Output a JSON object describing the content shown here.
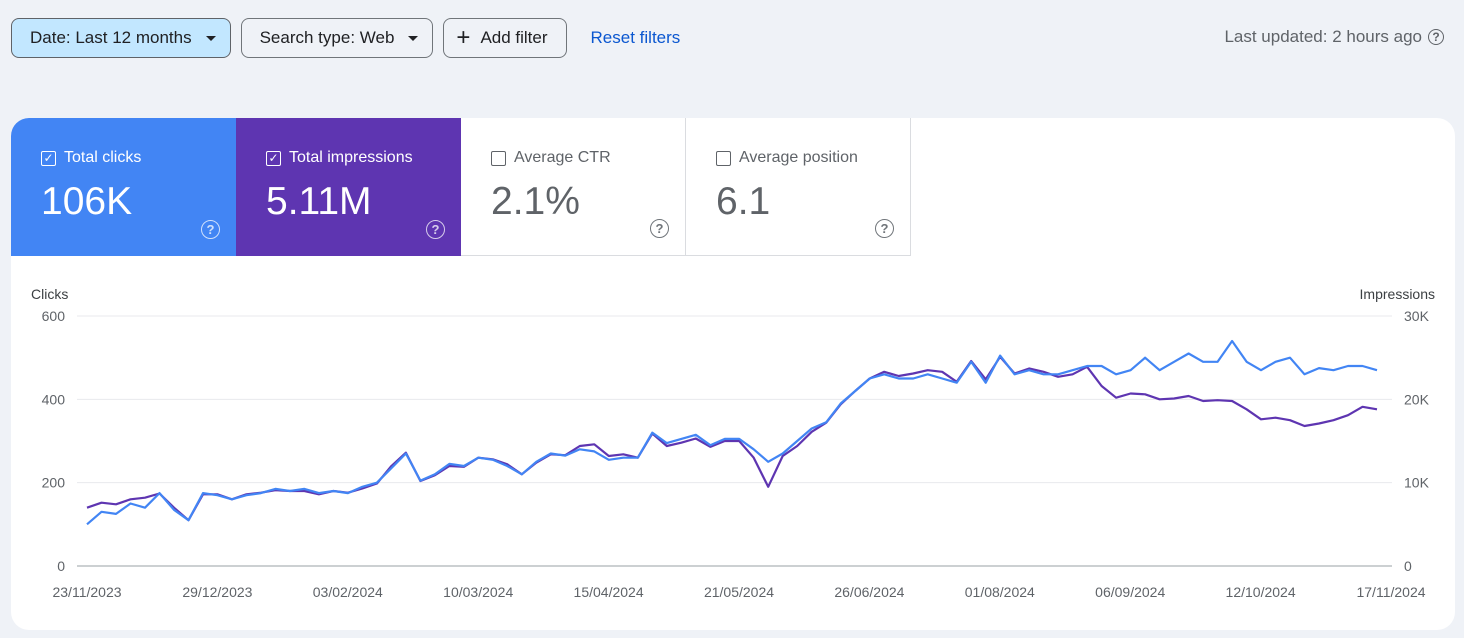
{
  "filters": {
    "date_label": "Date: Last 12 months",
    "search_type_label": "Search type: Web",
    "add_filter_label": "Add filter",
    "reset_label": "Reset filters"
  },
  "last_updated": "Last updated: 2 hours ago",
  "metrics": [
    {
      "label": "Total clicks",
      "value": "106K",
      "checked": true,
      "color": "#4285f4"
    },
    {
      "label": "Total impressions",
      "value": "5.11M",
      "checked": true,
      "color": "#5e35b1"
    },
    {
      "label": "Average CTR",
      "value": "2.1%",
      "checked": false
    },
    {
      "label": "Average position",
      "value": "6.1",
      "checked": false
    }
  ],
  "chart_data": {
    "type": "line",
    "left_axis_title": "Clicks",
    "right_axis_title": "Impressions",
    "left_ticks": [
      "0",
      "200",
      "400",
      "600"
    ],
    "right_ticks": [
      "0",
      "10K",
      "20K",
      "30K"
    ],
    "ylim_left": [
      0,
      600
    ],
    "ylim_right": [
      0,
      30000
    ],
    "x_tick_labels": [
      "23/11/2023",
      "29/12/2023",
      "03/02/2024",
      "10/03/2024",
      "15/04/2024",
      "21/05/2024",
      "26/06/2024",
      "01/08/2024",
      "06/09/2024",
      "12/10/2024",
      "17/11/2024"
    ],
    "grid": true,
    "series": [
      {
        "name": "Clicks",
        "axis": "left",
        "color": "#4285f4",
        "values": [
          100,
          130,
          125,
          150,
          140,
          175,
          135,
          110,
          175,
          170,
          160,
          170,
          175,
          185,
          180,
          185,
          175,
          180,
          175,
          190,
          200,
          235,
          270,
          205,
          220,
          245,
          240,
          260,
          255,
          240,
          220,
          250,
          270,
          265,
          280,
          275,
          255,
          260,
          260,
          320,
          295,
          305,
          315,
          290,
          305,
          305,
          280,
          250,
          270,
          300,
          330,
          345,
          390,
          420,
          450,
          460,
          450,
          450,
          460,
          450,
          440,
          490,
          440,
          505,
          460,
          470,
          460,
          460,
          470,
          480,
          480,
          460,
          470,
          500,
          470,
          490,
          510,
          490,
          490,
          540,
          490,
          470,
          490,
          500,
          460,
          475,
          470,
          480,
          480,
          470
        ]
      },
      {
        "name": "Impressions",
        "axis": "right",
        "color": "#5e35b1",
        "values": [
          7000,
          7600,
          7400,
          8000,
          8200,
          8700,
          7000,
          5500,
          8600,
          8600,
          8000,
          8600,
          8800,
          9100,
          9000,
          9000,
          8600,
          9000,
          8800,
          9300,
          9900,
          12000,
          13600,
          10200,
          10900,
          12000,
          11900,
          13000,
          12800,
          12200,
          11000,
          12400,
          13400,
          13300,
          14400,
          14600,
          13200,
          13400,
          13000,
          15900,
          14400,
          14800,
          15300,
          14300,
          15000,
          15000,
          13000,
          9500,
          13200,
          14400,
          16100,
          17200,
          19400,
          21000,
          22500,
          23300,
          22800,
          23100,
          23500,
          23300,
          22100,
          24600,
          22400,
          25100,
          23100,
          23700,
          23300,
          22700,
          23000,
          23900,
          21600,
          20200,
          20700,
          20600,
          20000,
          20100,
          20400,
          19800,
          19900,
          19800,
          18800,
          17600,
          17800,
          17500,
          16800,
          17100,
          17500,
          18100,
          19100,
          18800
        ]
      }
    ]
  }
}
